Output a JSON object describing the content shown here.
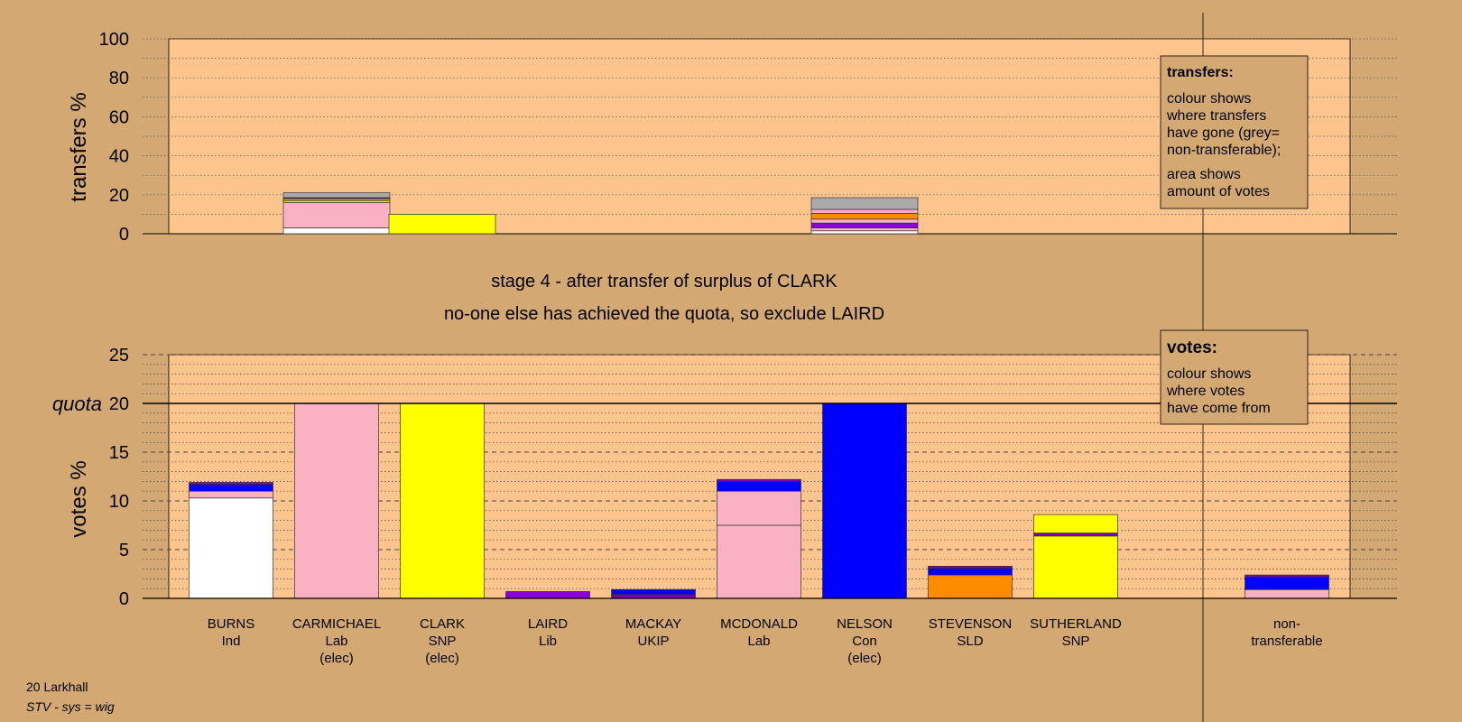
{
  "colors": {
    "background": "#d4a872",
    "plot_area": "#fdc58d",
    "Ind": "#ffffff",
    "Lab": "#fbb1c4",
    "SNP": "#ffff00",
    "Lib": "#8a00d8",
    "UKIP": "#7b00b0",
    "Con": "#0000ff",
    "SLD": "#ff8c00",
    "non-transferable": "#a9a9a9"
  },
  "candidates": [
    {
      "name": "BURNS",
      "party": "Ind",
      "status": ""
    },
    {
      "name": "CARMICHAEL",
      "party": "Lab",
      "status": "(elec)"
    },
    {
      "name": "CLARK",
      "party": "SNP",
      "status": "(elec)"
    },
    {
      "name": "LAIRD",
      "party": "Lib",
      "status": ""
    },
    {
      "name": "MACKAY",
      "party": "UKIP",
      "status": ""
    },
    {
      "name": "MCDONALD",
      "party": "Lab",
      "status": ""
    },
    {
      "name": "NELSON",
      "party": "Con",
      "status": "(elec)"
    },
    {
      "name": "STEVENSON",
      "party": "SLD",
      "status": ""
    },
    {
      "name": "SUTHERLAND",
      "party": "SNP",
      "status": ""
    }
  ],
  "non_transferable_label": [
    "non-",
    "transferable"
  ],
  "stage_text": {
    "line1": "stage 4 - after transfer of surplus of CLARK",
    "line2": "no-one else has achieved the quota, so exclude LAIRD"
  },
  "legends": {
    "transfers": {
      "title": "transfers:",
      "para1": [
        "colour shows",
        "where transfers",
        "have gone (grey=",
        "non-transferable);"
      ],
      "para2": [
        "area shows",
        "amount of votes"
      ]
    },
    "votes": {
      "title": "votes:",
      "para1": [
        "colour shows",
        "where votes",
        "have come from"
      ]
    }
  },
  "footer": {
    "line1": "20 Larkhall",
    "line2": "STV - sys = wig"
  },
  "chart_data": [
    {
      "type": "bar",
      "title": "",
      "ylabel": "transfers %",
      "ylim": [
        0,
        100
      ],
      "yticks": [
        0,
        20,
        40,
        60,
        80,
        100
      ],
      "bars": [
        {
          "candidate": "CARMICHAEL",
          "segments": [
            {
              "color_key": "Ind",
              "value": 3
            },
            {
              "color_key": "Lab",
              "value": 13
            },
            {
              "color_key": "SNP",
              "value": 1
            },
            {
              "color_key": "SLD",
              "value": 1
            },
            {
              "color_key": "Con",
              "value": 0.5
            },
            {
              "color_key": "non-transferable",
              "value": 2.5
            }
          ]
        },
        {
          "candidate": "CLARK",
          "segments": [
            {
              "color_key": "SNP",
              "value": 10
            }
          ]
        },
        {
          "candidate": "NELSON",
          "segments": [
            {
              "color_key": "Ind",
              "value": 1.5
            },
            {
              "color_key": "Lab",
              "value": 1.5
            },
            {
              "color_key": "Lib",
              "value": 2.5
            },
            {
              "color_key": "Lab",
              "value": 2
            },
            {
              "color_key": "SLD",
              "value": 3
            },
            {
              "color_key": "Lab",
              "value": 2
            },
            {
              "color_key": "non-transferable",
              "value": 6
            }
          ]
        }
      ]
    },
    {
      "type": "bar",
      "title": "",
      "ylabel": "votes %",
      "ylim": [
        0,
        25
      ],
      "yticks": [
        0,
        5,
        10,
        15,
        20,
        25
      ],
      "quota": 20,
      "quota_label": "quota",
      "bars": [
        {
          "candidate": "BURNS",
          "segments": [
            {
              "color_key": "Ind",
              "value": 10.3
            },
            {
              "color_key": "Lab",
              "value": 0.7
            },
            {
              "color_key": "Con",
              "value": 0.7
            },
            {
              "color_key": "UKIP",
              "value": 0.2
            }
          ]
        },
        {
          "candidate": "CARMICHAEL",
          "segments": [
            {
              "color_key": "Lab",
              "value": 20
            }
          ]
        },
        {
          "candidate": "CLARK",
          "segments": [
            {
              "color_key": "SNP",
              "value": 20
            }
          ]
        },
        {
          "candidate": "LAIRD",
          "segments": [
            {
              "color_key": "Lib",
              "value": 0.7
            }
          ]
        },
        {
          "candidate": "MACKAY",
          "segments": [
            {
              "color_key": "UKIP",
              "value": 0.4
            },
            {
              "color_key": "Con",
              "value": 0.5
            }
          ]
        },
        {
          "candidate": "MCDONALD",
          "segments": [
            {
              "color_key": "Lab",
              "value": 7.5
            },
            {
              "color_key": "Lab",
              "value": 3.5
            },
            {
              "color_key": "Con",
              "value": 1.0
            },
            {
              "color_key": "UKIP",
              "value": 0.2
            }
          ]
        },
        {
          "candidate": "NELSON",
          "segments": [
            {
              "color_key": "Con",
              "value": 20
            }
          ]
        },
        {
          "candidate": "STEVENSON",
          "segments": [
            {
              "color_key": "SLD",
              "value": 2.4
            },
            {
              "color_key": "Con",
              "value": 0.7
            },
            {
              "color_key": "UKIP",
              "value": 0.2
            }
          ]
        },
        {
          "candidate": "SUTHERLAND",
          "segments": [
            {
              "color_key": "SNP",
              "value": 6.4
            },
            {
              "color_key": "UKIP",
              "value": 0.3
            },
            {
              "color_key": "SNP",
              "value": 1.9
            }
          ]
        },
        {
          "candidate": "non-transferable",
          "segments": [
            {
              "color_key": "Lab",
              "value": 0.9
            },
            {
              "color_key": "Con",
              "value": 1.3
            },
            {
              "color_key": "UKIP",
              "value": 0.2
            }
          ]
        }
      ]
    }
  ]
}
